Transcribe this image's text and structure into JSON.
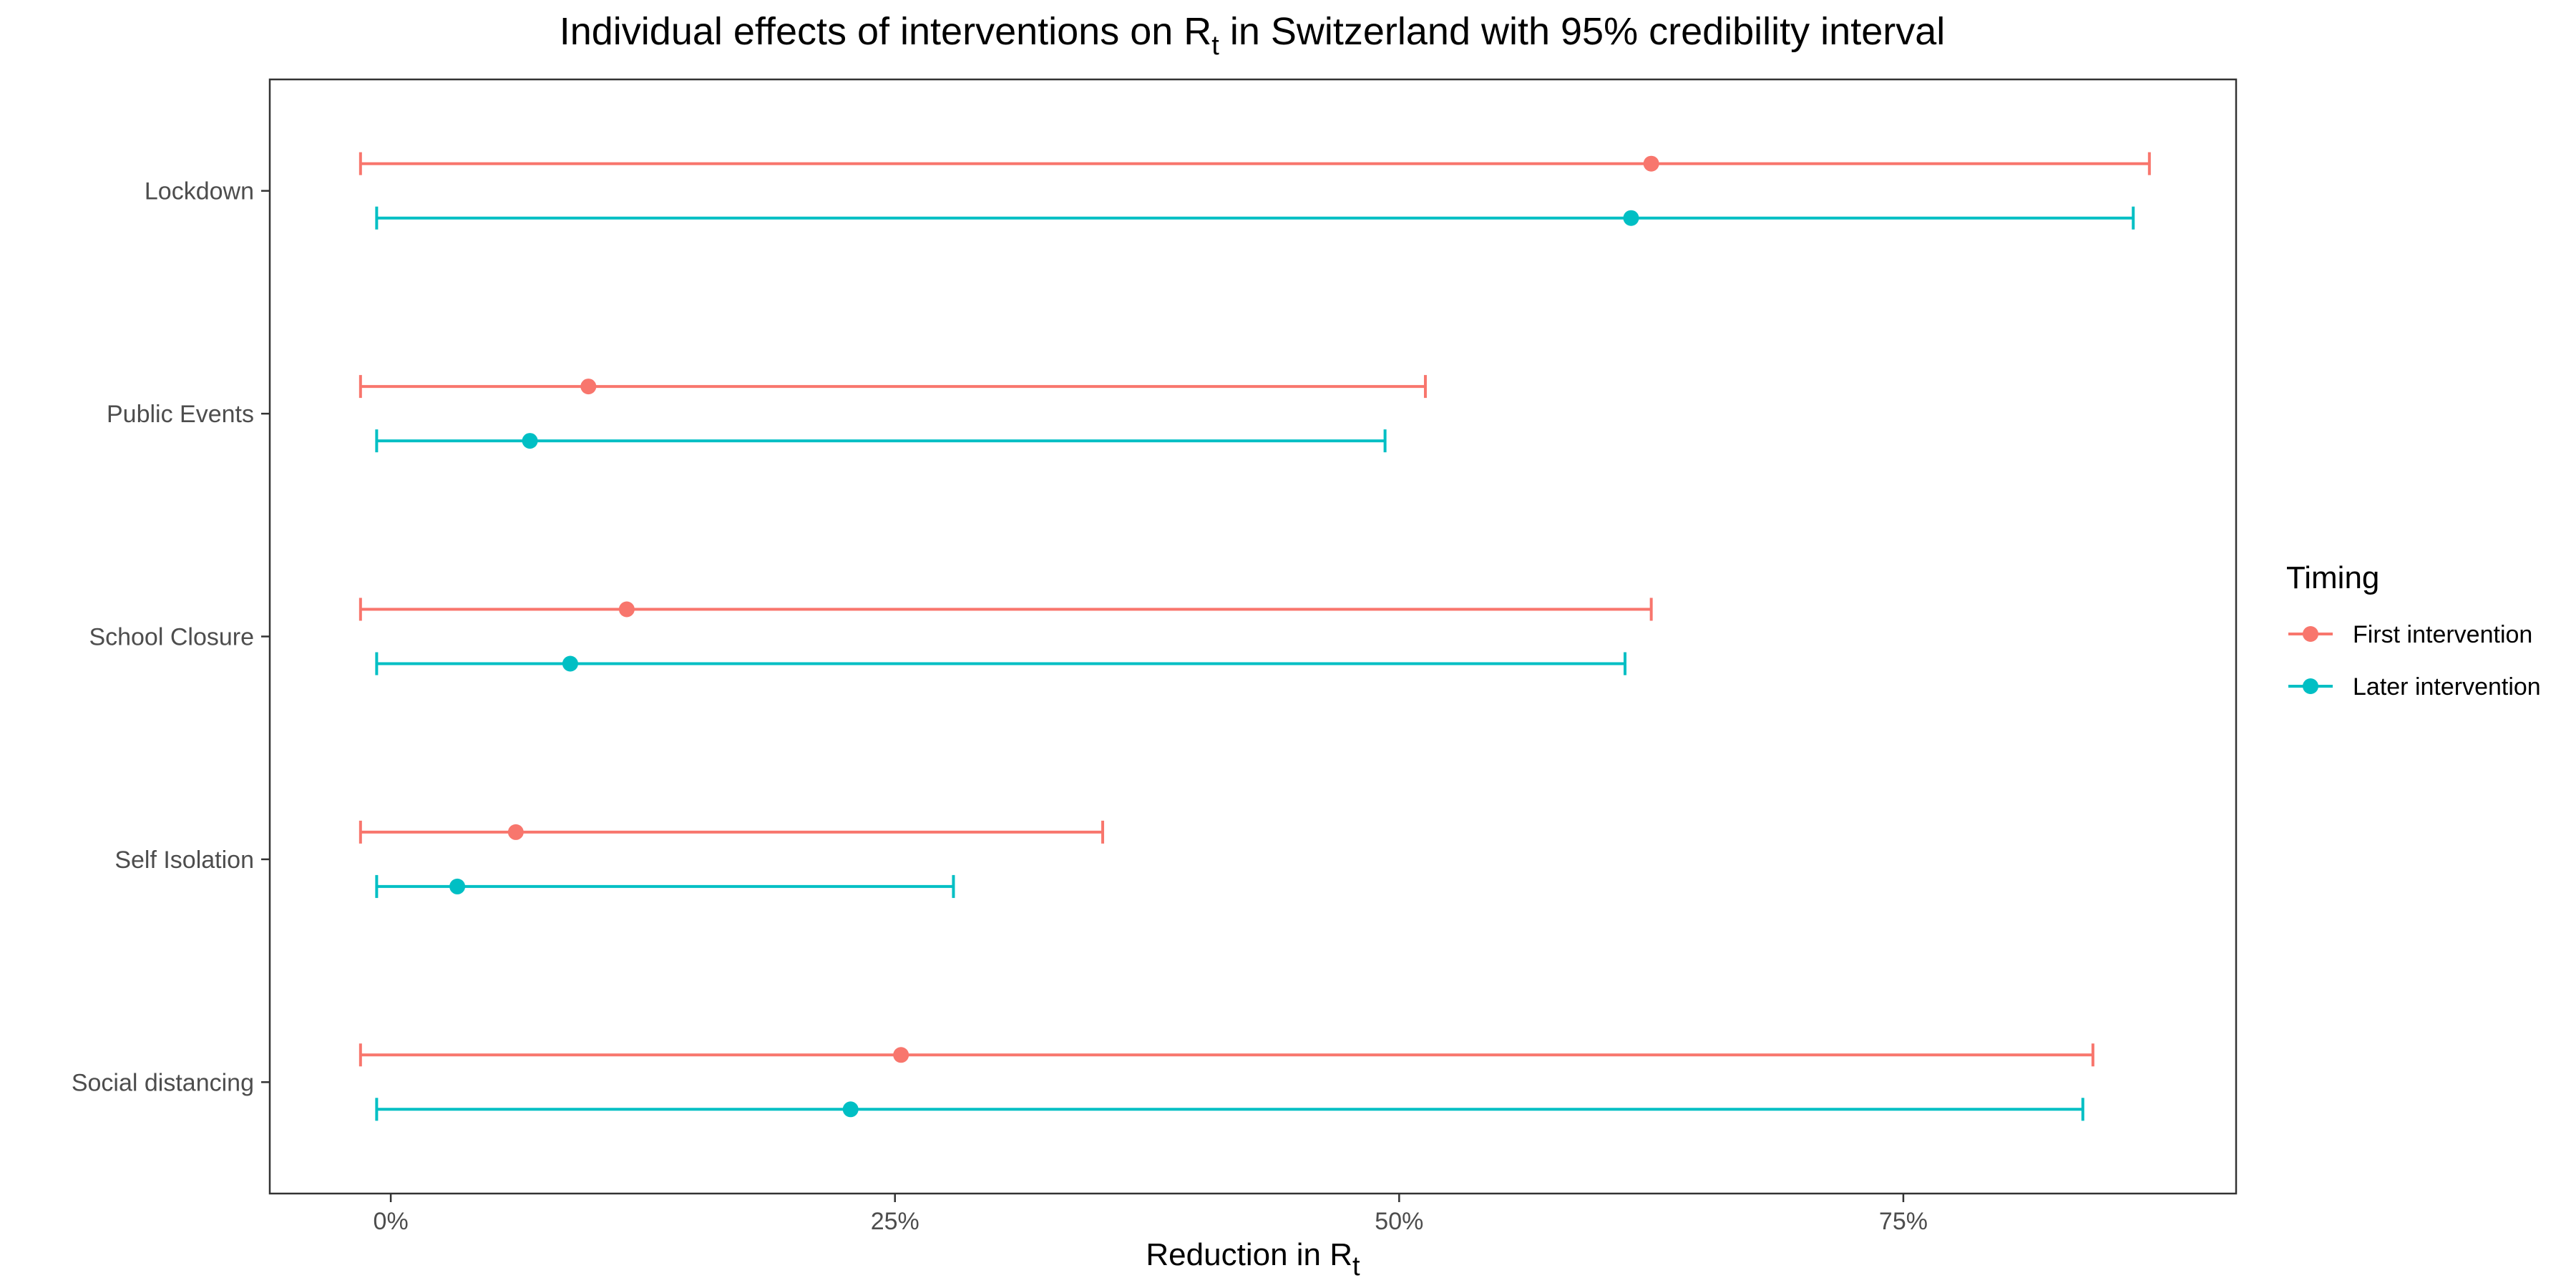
{
  "chart_data": {
    "type": "errorbar",
    "title": {
      "prefix": "Individual effects of interventions on ",
      "symbol": "R",
      "symbol_sub": "t",
      "suffix": " in Switzerland with 95% credibility interval"
    },
    "xlabel": {
      "prefix": "Reduction in R",
      "sub": "t"
    },
    "x_ticks": [
      {
        "value": 0,
        "label": "0%"
      },
      {
        "value": 25,
        "label": "25%"
      },
      {
        "value": 50,
        "label": "50%"
      },
      {
        "value": 75,
        "label": "75%"
      }
    ],
    "xlim": [
      -6,
      91.5
    ],
    "categories": [
      "Lockdown",
      "Public Events",
      "School Closure",
      "Self Isolation",
      "Social distancing"
    ],
    "legend": {
      "title": "Timing",
      "placement": "right"
    },
    "series": [
      {
        "name": "First intervention",
        "color": "#F8766D",
        "points": [
          {
            "category": "Lockdown",
            "mean": 62.5,
            "low": -1.5,
            "high": 87.2
          },
          {
            "category": "Public Events",
            "mean": 9.8,
            "low": -1.5,
            "high": 51.3
          },
          {
            "category": "School Closure",
            "mean": 11.7,
            "low": -1.5,
            "high": 62.5
          },
          {
            "category": "Self Isolation",
            "mean": 6.2,
            "low": -1.5,
            "high": 35.3
          },
          {
            "category": "Social distancing",
            "mean": 25.3,
            "low": -1.5,
            "high": 84.4
          }
        ]
      },
      {
        "name": "Later intervention",
        "color": "#00BFC4",
        "points": [
          {
            "category": "Lockdown",
            "mean": 61.5,
            "low": -0.7,
            "high": 86.4
          },
          {
            "category": "Public Events",
            "mean": 6.9,
            "low": -0.7,
            "high": 49.3
          },
          {
            "category": "School Closure",
            "mean": 8.9,
            "low": -0.7,
            "high": 61.2
          },
          {
            "category": "Self Isolation",
            "mean": 3.3,
            "low": -0.7,
            "high": 27.9
          },
          {
            "category": "Social distancing",
            "mean": 22.8,
            "low": -0.7,
            "high": 83.9
          }
        ]
      }
    ],
    "grid": false
  }
}
